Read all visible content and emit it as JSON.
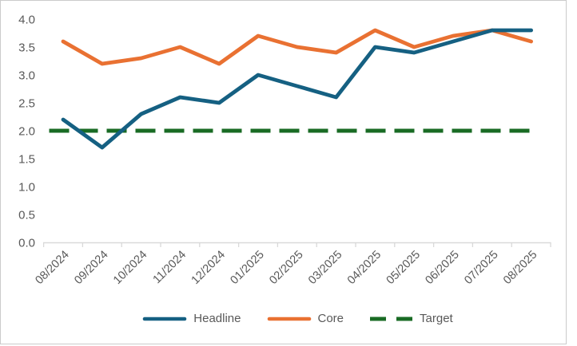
{
  "chart_data": {
    "type": "line",
    "title": "",
    "xlabel": "",
    "ylabel": "",
    "categories": [
      "08/2024",
      "09/2024",
      "10/2024",
      "11/2024",
      "12/2024",
      "01/2025",
      "02/2025",
      "03/2025",
      "04/2025",
      "05/2025",
      "06/2025",
      "07/2025",
      "08/2025"
    ],
    "series": [
      {
        "name": "Headline",
        "color": "#156082",
        "style": "solid",
        "values": [
          2.2,
          1.7,
          2.3,
          2.6,
          2.5,
          3.0,
          2.8,
          2.6,
          3.5,
          3.4,
          3.6,
          3.8,
          3.8
        ]
      },
      {
        "name": "Core",
        "color": "#E97132",
        "style": "solid",
        "values": [
          3.6,
          3.2,
          3.3,
          3.5,
          3.2,
          3.7,
          3.5,
          3.4,
          3.8,
          3.5,
          3.7,
          3.8,
          3.6
        ]
      },
      {
        "name": "Target",
        "color": "#196B24",
        "style": "dashed",
        "values": [
          2.0,
          2.0,
          2.0,
          2.0,
          2.0,
          2.0,
          2.0,
          2.0,
          2.0,
          2.0,
          2.0,
          2.0,
          2.0
        ]
      }
    ],
    "ylim": [
      0.0,
      4.0
    ],
    "ytick_step": 0.5,
    "ytick_labels": [
      "0.0",
      "0.5",
      "1.0",
      "1.5",
      "2.0",
      "2.5",
      "3.0",
      "3.5",
      "4.0"
    ],
    "grid": false,
    "legend_position": "bottom"
  },
  "style": {
    "axis_line_color": "#D9D9D9",
    "axis_label_color": "#595959",
    "frame_border_color": "#CBCBCB",
    "background": "#FFFFFF"
  }
}
